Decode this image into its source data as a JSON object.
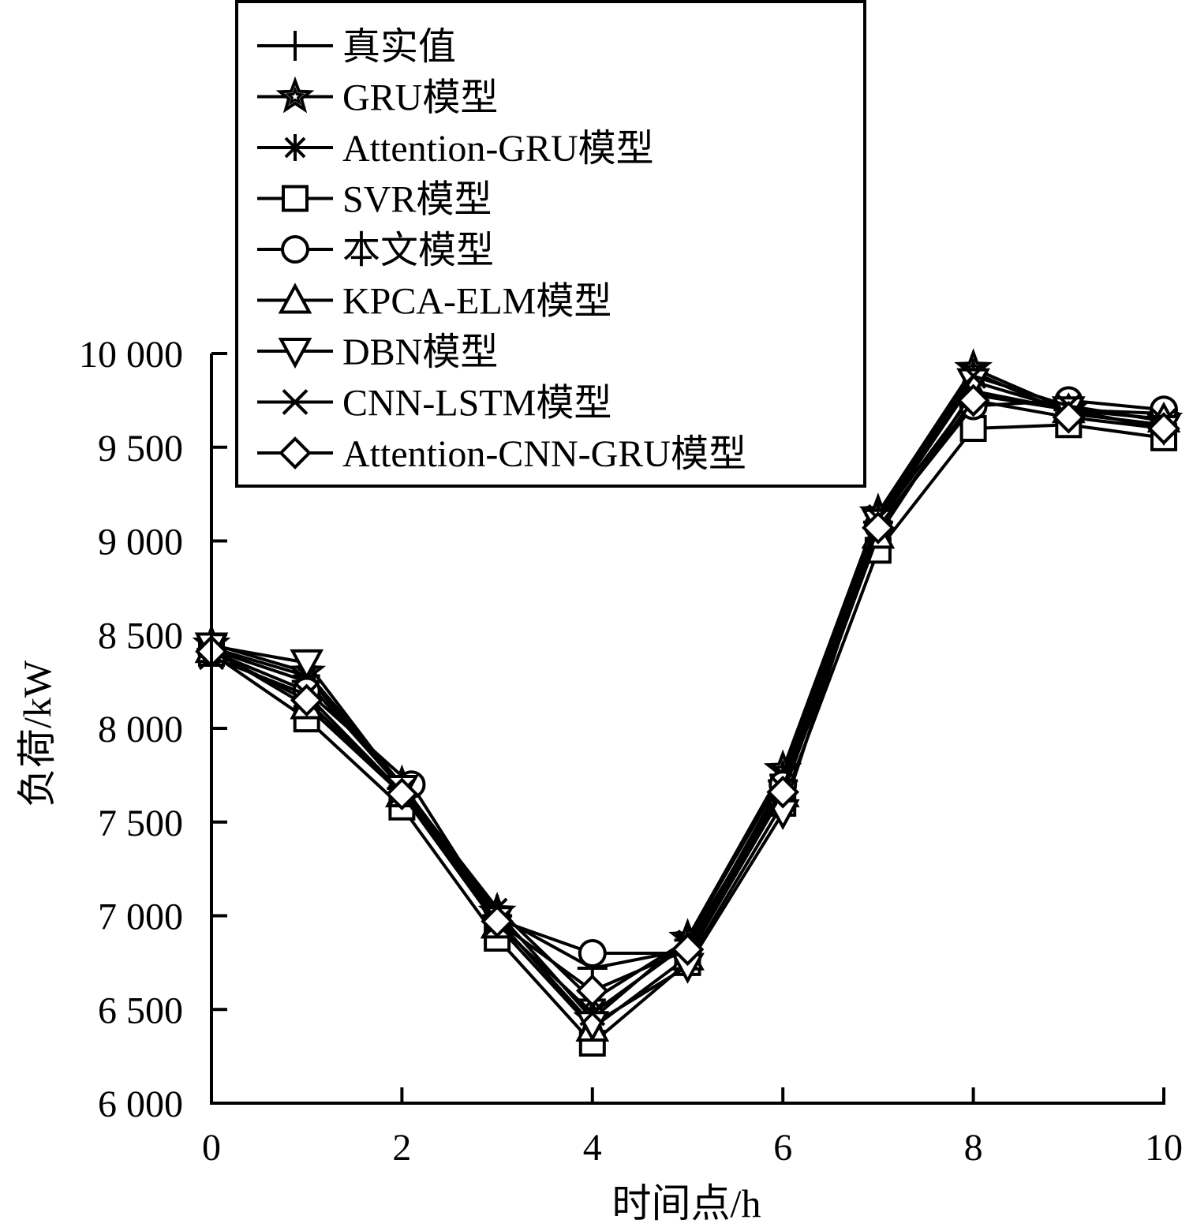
{
  "chart_data": {
    "type": "line",
    "xlabel": "时间点/h",
    "ylabel": "负荷/kW",
    "xlim": [
      0,
      10
    ],
    "ylim": [
      6000,
      10000
    ],
    "x_ticks": [
      0,
      2,
      4,
      6,
      8,
      10
    ],
    "x_tick_labels": [
      "0",
      "2",
      "4",
      "6",
      "8",
      "10"
    ],
    "y_ticks": [
      6000,
      6500,
      7000,
      7500,
      8000,
      8500,
      9000,
      9500,
      10000
    ],
    "y_tick_labels": [
      "6 000",
      "6 500",
      "7 000",
      "7 500",
      "8 000",
      "8 500",
      "9 000",
      "9 500",
      "10 000"
    ],
    "legend_position": "top-left",
    "grid": false,
    "line_color": "#000000",
    "series": [
      {
        "name": "真实值",
        "marker": "plus",
        "x": [
          0,
          1,
          2,
          3,
          4,
          5,
          6,
          7,
          8,
          9,
          10
        ],
        "y": [
          8420,
          8250,
          7680,
          7000,
          6720,
          6820,
          7720,
          9100,
          9780,
          9700,
          9680
        ]
      },
      {
        "name": "GRU模型",
        "marker": "star",
        "x": [
          0,
          1,
          2,
          3,
          4,
          5,
          6,
          7,
          8,
          9,
          10
        ],
        "y": [
          8450,
          8300,
          7700,
          7020,
          6450,
          6880,
          7780,
          9150,
          9920,
          9700,
          9650
        ]
      },
      {
        "name": "Attention-GRU模型",
        "marker": "asterisk",
        "x": [
          0,
          1,
          2,
          3,
          4,
          5,
          6,
          7,
          8,
          9,
          10
        ],
        "y": [
          8430,
          8280,
          7690,
          7040,
          6550,
          6870,
          7750,
          9140,
          9900,
          9680,
          9620
        ]
      },
      {
        "name": "SVR模型",
        "marker": "square",
        "x": [
          0,
          1,
          2,
          3,
          4,
          5,
          6,
          7,
          8,
          9,
          10
        ],
        "y": [
          8400,
          8050,
          7580,
          6880,
          6320,
          6750,
          7600,
          8950,
          9600,
          9620,
          9550
        ]
      },
      {
        "name": "本文模型",
        "marker": "circle",
        "x": [
          0,
          1,
          2.1,
          3,
          4,
          5,
          6,
          7,
          8,
          9,
          10
        ],
        "y": [
          8410,
          8200,
          7700,
          6980,
          6800,
          6800,
          7700,
          9080,
          9720,
          9750,
          9700
        ]
      },
      {
        "name": "KPCA-ELM模型",
        "marker": "triangle-up",
        "x": [
          0,
          1,
          2,
          3,
          4,
          5,
          6,
          7,
          8,
          9,
          10
        ],
        "y": [
          8420,
          8120,
          7650,
          6950,
          6400,
          6780,
          7650,
          9030,
          9800,
          9700,
          9650
        ]
      },
      {
        "name": "DBN模型",
        "marker": "triangle-down",
        "x": [
          0,
          1,
          2,
          3,
          4,
          5,
          6,
          7,
          8,
          9,
          10
        ],
        "y": [
          8440,
          8350,
          7680,
          6980,
          6420,
          6730,
          7550,
          9100,
          9850,
          9700,
          9600
        ]
      },
      {
        "name": "CNN-LSTM模型",
        "marker": "cross",
        "x": [
          0,
          1,
          2,
          3,
          4,
          5,
          6,
          7,
          8,
          9,
          10
        ],
        "y": [
          8380,
          8180,
          7660,
          6960,
          6480,
          6850,
          7680,
          9120,
          9880,
          9720,
          9640
        ]
      },
      {
        "name": "Attention-CNN-GRU模型",
        "marker": "diamond",
        "x": [
          0,
          1,
          2,
          3,
          4,
          5,
          6,
          7,
          8,
          9,
          10
        ],
        "y": [
          8410,
          8150,
          7650,
          6970,
          6600,
          6820,
          7660,
          9070,
          9750,
          9660,
          9600
        ]
      }
    ]
  }
}
